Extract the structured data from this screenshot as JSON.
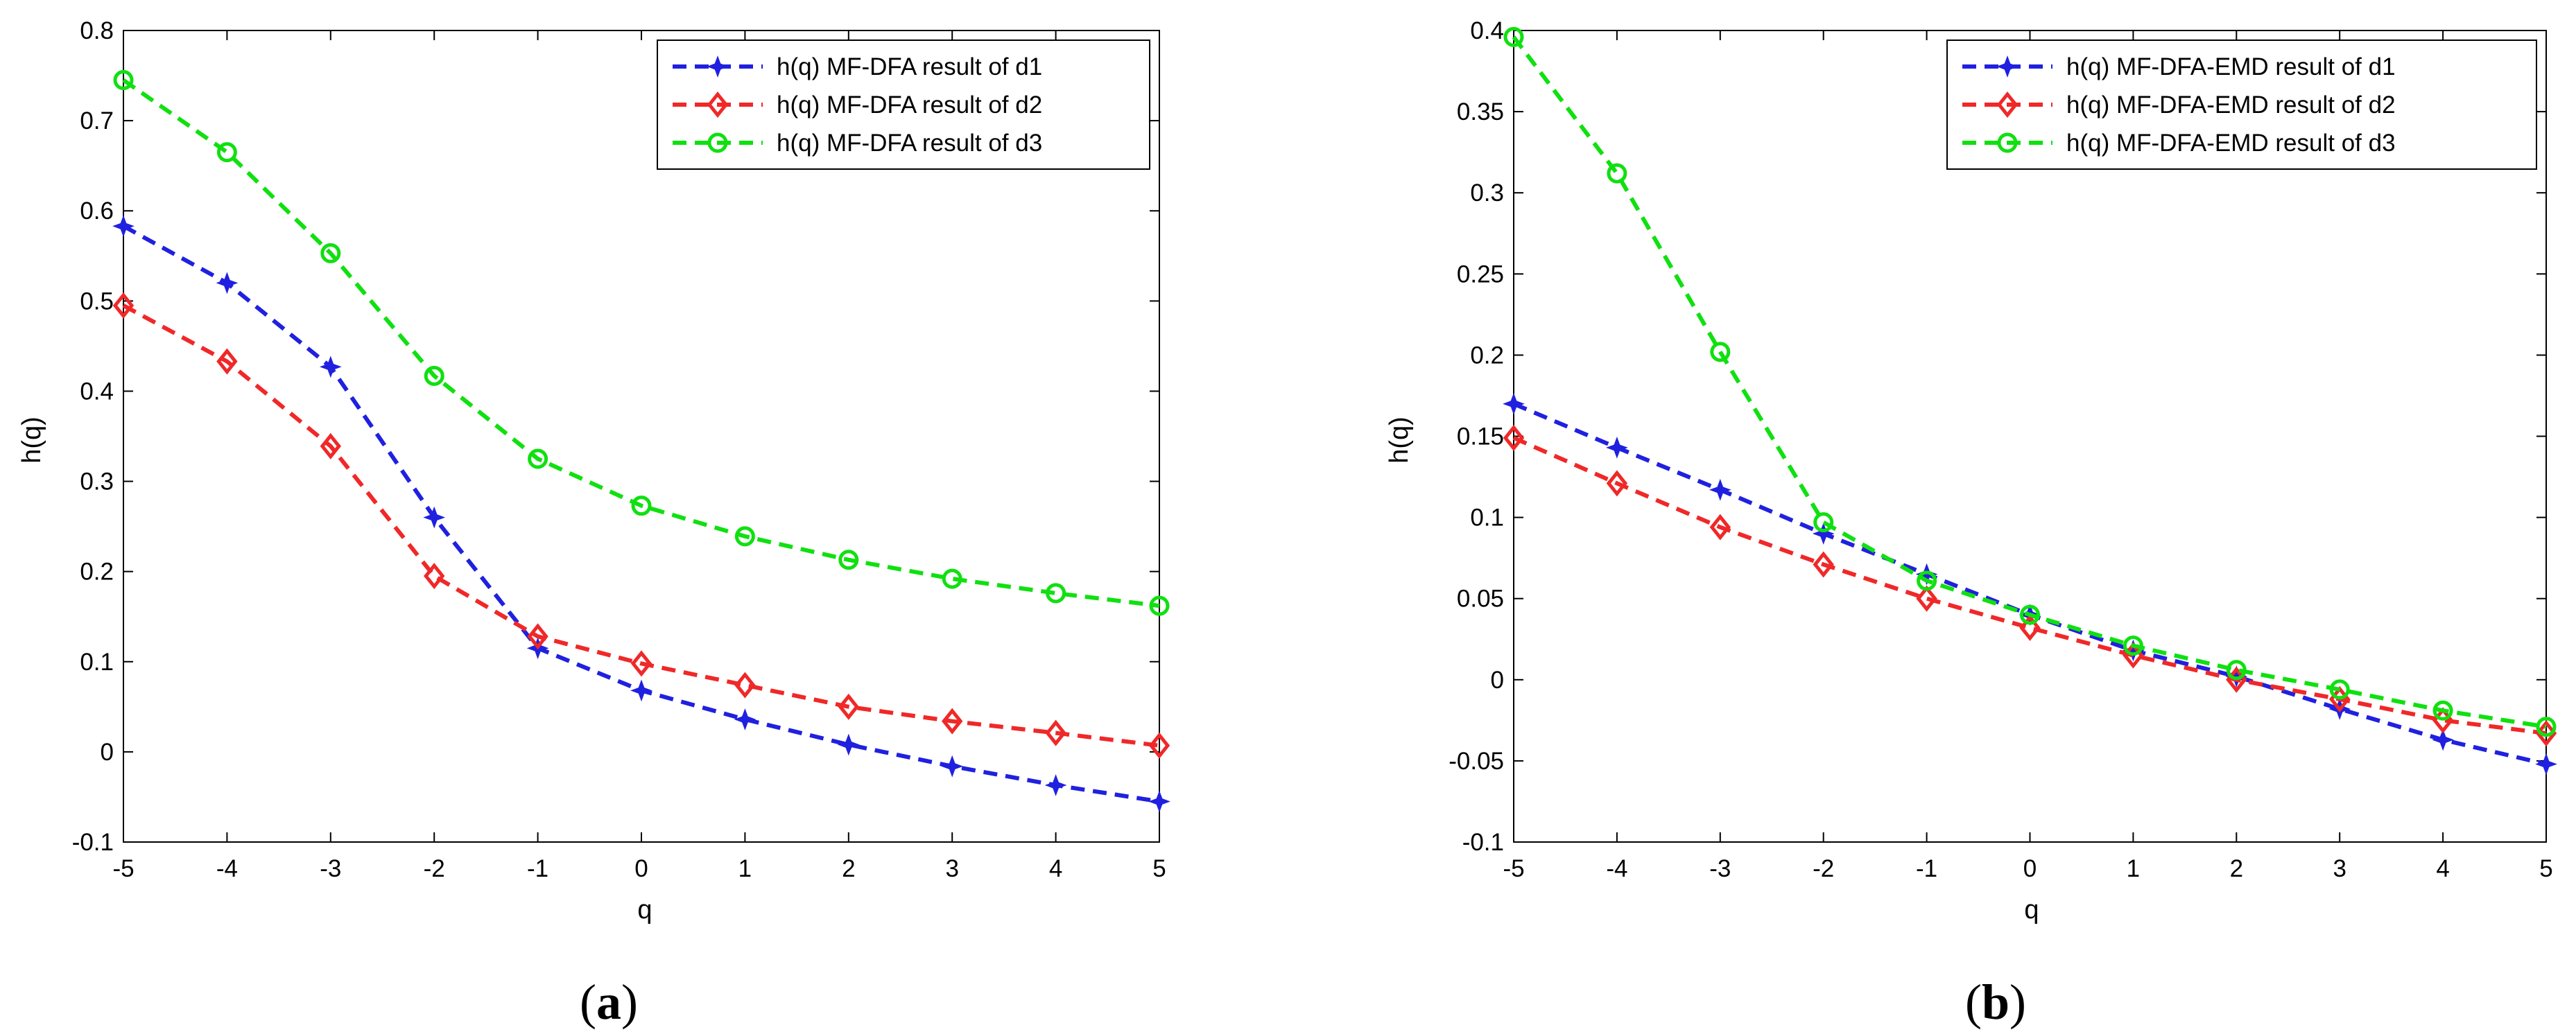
{
  "chart_data": [
    {
      "type": "line",
      "caption_letter": "a",
      "xlabel": "q",
      "ylabel": "h(q)",
      "xlim": [
        -5,
        5
      ],
      "ylim": [
        -0.1,
        0.8
      ],
      "xticks": [
        -5,
        -4,
        -3,
        -2,
        -1,
        0,
        1,
        2,
        3,
        4,
        5
      ],
      "yticks": [
        -0.1,
        0,
        0.1,
        0.2,
        0.3,
        0.4,
        0.5,
        0.6,
        0.7,
        0.8
      ],
      "ytick_labels": [
        "-0.1",
        "0",
        "0.1",
        "0.2",
        "0.3",
        "0.4",
        "0.5",
        "0.6",
        "0.7",
        "0.8"
      ],
      "legend_position": "top-right",
      "x": [
        -5,
        -4,
        -3,
        -2,
        -1,
        0,
        1,
        2,
        3,
        4,
        5
      ],
      "series": [
        {
          "name": "h(q) MF-DFA result of d1",
          "color": "#2020e0",
          "marker": "star",
          "values": [
            0.583,
            0.52,
            0.427,
            0.26,
            0.115,
            0.068,
            0.036,
            0.008,
            -0.016,
            -0.037,
            -0.055
          ]
        },
        {
          "name": "h(q) MF-DFA result of d2",
          "color": "#f02828",
          "marker": "diamond",
          "values": [
            0.495,
            0.433,
            0.339,
            0.195,
            0.128,
            0.098,
            0.074,
            0.05,
            0.034,
            0.021,
            0.007
          ]
        },
        {
          "name": "h(q) MF-DFA result of d3",
          "color": "#10e010",
          "marker": "circle",
          "values": [
            0.745,
            0.665,
            0.553,
            0.417,
            0.325,
            0.273,
            0.239,
            0.213,
            0.192,
            0.176,
            0.162
          ]
        }
      ]
    },
    {
      "type": "line",
      "caption_letter": "b",
      "xlabel": "q",
      "ylabel": "h(q)",
      "xlim": [
        -5,
        5
      ],
      "ylim": [
        -0.1,
        0.4
      ],
      "xticks": [
        -5,
        -4,
        -3,
        -2,
        -1,
        0,
        1,
        2,
        3,
        4,
        5
      ],
      "yticks": [
        -0.1,
        -0.05,
        0,
        0.05,
        0.1,
        0.15,
        0.2,
        0.25,
        0.3,
        0.35,
        0.4
      ],
      "ytick_labels": [
        "-0.1",
        "-0.05",
        "0",
        "0.05",
        "0.1",
        "0.15",
        "0.2",
        "0.25",
        "0.3",
        "0.35",
        "0.4"
      ],
      "legend_position": "top-right",
      "x": [
        -5,
        -4,
        -3,
        -2,
        -1,
        0,
        1,
        2,
        3,
        4,
        5
      ],
      "series": [
        {
          "name": "h(q) MF-DFA-EMD result of d1",
          "color": "#2020e0",
          "marker": "star",
          "values": [
            0.17,
            0.143,
            0.117,
            0.09,
            0.065,
            0.04,
            0.018,
            0.002,
            -0.018,
            -0.037,
            -0.052
          ]
        },
        {
          "name": "h(q) MF-DFA-EMD result of d2",
          "color": "#f02828",
          "marker": "diamond",
          "values": [
            0.149,
            0.121,
            0.094,
            0.071,
            0.05,
            0.032,
            0.015,
            0.0,
            -0.012,
            -0.025,
            -0.033
          ]
        },
        {
          "name": "h(q) MF-DFA-EMD result of d3",
          "color": "#10e010",
          "marker": "circle",
          "values": [
            0.396,
            0.312,
            0.202,
            0.097,
            0.061,
            0.04,
            0.021,
            0.006,
            -0.006,
            -0.019,
            -0.029
          ]
        }
      ]
    }
  ]
}
